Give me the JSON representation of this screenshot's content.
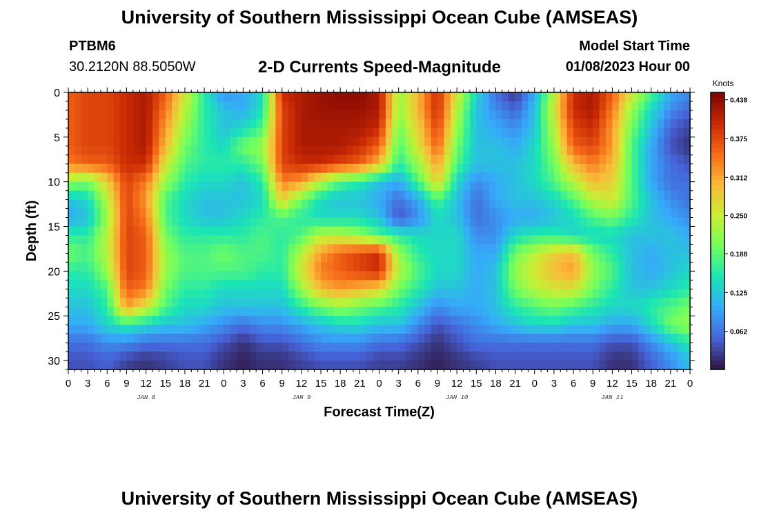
{
  "header": {
    "title": "University of Southern Mississippi Ocean Cube (AMSEAS)",
    "station": "PTBM6",
    "coords": "30.2120N  88.5050W",
    "subtitle": "2-D Currents Speed-Magnitude",
    "model_start_label": "Model Start Time",
    "model_start_value": "01/08/2023 Hour 00"
  },
  "footer": {
    "title": "University of Southern Mississippi Ocean Cube (AMSEAS)"
  },
  "colors": {
    "colormap": [
      "#30123b",
      "#4662d7",
      "#36aaf9",
      "#1ae4b6",
      "#72fe5e",
      "#c8ef34",
      "#faba39",
      "#f66b19",
      "#ca2a04",
      "#7a0403"
    ]
  },
  "chart_data": {
    "type": "heatmap",
    "title": "2-D Currents Speed-Magnitude",
    "xlabel": "Forecast Time(Z)",
    "ylabel": "Depth (ft)",
    "xlim": [
      0,
      96
    ],
    "ylim": [
      0,
      31
    ],
    "x_tick_values": [
      0,
      3,
      6,
      9,
      12,
      15,
      18,
      21,
      24,
      27,
      30,
      33,
      36,
      39,
      42,
      45,
      48,
      51,
      54,
      57,
      60,
      63,
      66,
      69,
      72,
      75,
      78,
      81,
      84,
      87,
      90,
      93,
      96
    ],
    "x_tick_labels": [
      "0",
      "3",
      "6",
      "9",
      "12",
      "15",
      "18",
      "21",
      "0",
      "3",
      "6",
      "9",
      "12",
      "15",
      "18",
      "21",
      "0",
      "3",
      "6",
      "9",
      "12",
      "15",
      "18",
      "21",
      "0",
      "3",
      "6",
      "9",
      "12",
      "15",
      "18",
      "21",
      "0"
    ],
    "y_tick_values": [
      0,
      5,
      10,
      15,
      20,
      25,
      30
    ],
    "y_tick_labels": [
      "0",
      "5",
      "10",
      "15",
      "20",
      "25",
      "30"
    ],
    "day_labels": [
      {
        "text": "JAN 8",
        "x": 12
      },
      {
        "text": "JAN 9",
        "x": 36
      },
      {
        "text": "JAN 10",
        "x": 60
      },
      {
        "text": "JAN 11",
        "x": 84
      }
    ],
    "colorbar": {
      "unit": "Knots",
      "min": 0.0,
      "max": 0.45,
      "tick_values": [
        0.062,
        0.125,
        0.188,
        0.25,
        0.312,
        0.375,
        0.438
      ],
      "tick_labels": [
        "0.062",
        "0.125",
        "0.188",
        "0.250",
        "0.312",
        "0.375",
        "0.438"
      ]
    },
    "depths_ft": [
      0,
      2,
      4,
      6,
      8,
      10,
      12,
      14,
      16,
      18,
      20,
      22,
      24,
      26,
      28,
      30,
      31
    ],
    "times_h": [
      0,
      3,
      6,
      9,
      12,
      15,
      18,
      21,
      24,
      27,
      30,
      33,
      36,
      39,
      42,
      45,
      48,
      51,
      54,
      57,
      60,
      63,
      66,
      69,
      72,
      75,
      78,
      81,
      84,
      87,
      90,
      93,
      96
    ],
    "speed_knots": [
      [
        0.36,
        0.38,
        0.38,
        0.4,
        0.42,
        0.36,
        0.26,
        0.16,
        0.08,
        0.1,
        0.14,
        0.4,
        0.42,
        0.43,
        0.44,
        0.44,
        0.42,
        0.22,
        0.3,
        0.4,
        0.26,
        0.14,
        0.06,
        0.02,
        0.1,
        0.24,
        0.4,
        0.42,
        0.36,
        0.26,
        0.18,
        0.1,
        0.08
      ],
      [
        0.36,
        0.38,
        0.38,
        0.4,
        0.42,
        0.34,
        0.24,
        0.16,
        0.12,
        0.1,
        0.15,
        0.38,
        0.42,
        0.43,
        0.43,
        0.43,
        0.42,
        0.22,
        0.3,
        0.4,
        0.24,
        0.12,
        0.08,
        0.05,
        0.12,
        0.26,
        0.4,
        0.42,
        0.34,
        0.22,
        0.14,
        0.08,
        0.05
      ],
      [
        0.36,
        0.38,
        0.38,
        0.4,
        0.42,
        0.32,
        0.22,
        0.16,
        0.12,
        0.14,
        0.18,
        0.38,
        0.42,
        0.42,
        0.42,
        0.42,
        0.4,
        0.2,
        0.28,
        0.38,
        0.22,
        0.12,
        0.1,
        0.08,
        0.12,
        0.24,
        0.38,
        0.4,
        0.32,
        0.2,
        0.12,
        0.05,
        0.03
      ],
      [
        0.36,
        0.38,
        0.38,
        0.4,
        0.42,
        0.3,
        0.2,
        0.16,
        0.14,
        0.2,
        0.22,
        0.38,
        0.42,
        0.42,
        0.42,
        0.4,
        0.36,
        0.18,
        0.26,
        0.36,
        0.2,
        0.12,
        0.12,
        0.1,
        0.14,
        0.22,
        0.36,
        0.38,
        0.32,
        0.18,
        0.1,
        0.04,
        0.02
      ],
      [
        0.34,
        0.36,
        0.36,
        0.4,
        0.4,
        0.26,
        0.18,
        0.16,
        0.16,
        0.16,
        0.2,
        0.38,
        0.4,
        0.4,
        0.38,
        0.36,
        0.3,
        0.16,
        0.22,
        0.32,
        0.18,
        0.12,
        0.12,
        0.12,
        0.14,
        0.2,
        0.3,
        0.34,
        0.3,
        0.18,
        0.1,
        0.06,
        0.04
      ],
      [
        0.22,
        0.2,
        0.28,
        0.38,
        0.34,
        0.22,
        0.16,
        0.14,
        0.14,
        0.12,
        0.16,
        0.34,
        0.32,
        0.24,
        0.18,
        0.16,
        0.12,
        0.1,
        0.18,
        0.28,
        0.14,
        0.08,
        0.1,
        0.12,
        0.14,
        0.18,
        0.24,
        0.3,
        0.28,
        0.18,
        0.1,
        0.06,
        0.06
      ],
      [
        0.12,
        0.14,
        0.24,
        0.38,
        0.32,
        0.18,
        0.14,
        0.12,
        0.12,
        0.12,
        0.14,
        0.28,
        0.2,
        0.14,
        0.12,
        0.12,
        0.1,
        0.06,
        0.1,
        0.18,
        0.12,
        0.06,
        0.1,
        0.12,
        0.12,
        0.14,
        0.18,
        0.24,
        0.26,
        0.18,
        0.12,
        0.08,
        0.06
      ],
      [
        0.1,
        0.12,
        0.22,
        0.38,
        0.34,
        0.18,
        0.14,
        0.12,
        0.12,
        0.14,
        0.16,
        0.18,
        0.16,
        0.14,
        0.14,
        0.14,
        0.12,
        0.04,
        0.08,
        0.14,
        0.12,
        0.06,
        0.08,
        0.1,
        0.1,
        0.12,
        0.14,
        0.18,
        0.2,
        0.16,
        0.12,
        0.1,
        0.08
      ],
      [
        0.16,
        0.16,
        0.24,
        0.38,
        0.36,
        0.2,
        0.16,
        0.16,
        0.16,
        0.16,
        0.18,
        0.16,
        0.18,
        0.24,
        0.24,
        0.22,
        0.18,
        0.16,
        0.14,
        0.14,
        0.14,
        0.08,
        0.08,
        0.14,
        0.16,
        0.16,
        0.14,
        0.14,
        0.14,
        0.12,
        0.12,
        0.12,
        0.1
      ],
      [
        0.2,
        0.18,
        0.24,
        0.38,
        0.36,
        0.22,
        0.18,
        0.18,
        0.2,
        0.18,
        0.18,
        0.16,
        0.24,
        0.32,
        0.36,
        0.38,
        0.4,
        0.22,
        0.16,
        0.14,
        0.14,
        0.1,
        0.1,
        0.2,
        0.24,
        0.28,
        0.3,
        0.2,
        0.16,
        0.12,
        0.1,
        0.12,
        0.12
      ],
      [
        0.16,
        0.16,
        0.22,
        0.38,
        0.36,
        0.22,
        0.18,
        0.18,
        0.18,
        0.18,
        0.16,
        0.16,
        0.26,
        0.34,
        0.36,
        0.38,
        0.4,
        0.24,
        0.18,
        0.14,
        0.14,
        0.1,
        0.12,
        0.22,
        0.26,
        0.3,
        0.32,
        0.22,
        0.18,
        0.12,
        0.1,
        0.12,
        0.14
      ],
      [
        0.14,
        0.14,
        0.18,
        0.36,
        0.34,
        0.2,
        0.16,
        0.16,
        0.14,
        0.14,
        0.14,
        0.14,
        0.22,
        0.3,
        0.32,
        0.3,
        0.28,
        0.2,
        0.16,
        0.12,
        0.12,
        0.1,
        0.12,
        0.2,
        0.24,
        0.26,
        0.26,
        0.2,
        0.16,
        0.12,
        0.12,
        0.14,
        0.16
      ],
      [
        0.12,
        0.12,
        0.16,
        0.32,
        0.26,
        0.18,
        0.14,
        0.14,
        0.12,
        0.12,
        0.12,
        0.12,
        0.16,
        0.2,
        0.22,
        0.2,
        0.18,
        0.16,
        0.12,
        0.08,
        0.1,
        0.1,
        0.12,
        0.16,
        0.18,
        0.2,
        0.18,
        0.16,
        0.14,
        0.14,
        0.16,
        0.18,
        0.2
      ],
      [
        0.1,
        0.1,
        0.14,
        0.16,
        0.14,
        0.12,
        0.12,
        0.1,
        0.08,
        0.06,
        0.08,
        0.08,
        0.1,
        0.12,
        0.14,
        0.14,
        0.12,
        0.12,
        0.08,
        0.04,
        0.06,
        0.08,
        0.1,
        0.12,
        0.14,
        0.14,
        0.12,
        0.12,
        0.1,
        0.1,
        0.14,
        0.2,
        0.22
      ],
      [
        0.06,
        0.06,
        0.08,
        0.08,
        0.06,
        0.06,
        0.06,
        0.06,
        0.04,
        0.02,
        0.04,
        0.04,
        0.06,
        0.08,
        0.08,
        0.08,
        0.06,
        0.06,
        0.04,
        0.02,
        0.04,
        0.06,
        0.06,
        0.06,
        0.06,
        0.06,
        0.06,
        0.06,
        0.04,
        0.04,
        0.08,
        0.12,
        0.16
      ],
      [
        0.04,
        0.04,
        0.05,
        0.03,
        0.02,
        0.03,
        0.04,
        0.04,
        0.02,
        0.01,
        0.02,
        0.02,
        0.03,
        0.04,
        0.04,
        0.04,
        0.03,
        0.03,
        0.02,
        0.01,
        0.02,
        0.03,
        0.04,
        0.04,
        0.04,
        0.04,
        0.04,
        0.04,
        0.02,
        0.02,
        0.05,
        0.08,
        0.12
      ],
      [
        0.04,
        0.04,
        0.05,
        0.03,
        0.02,
        0.03,
        0.04,
        0.04,
        0.02,
        0.01,
        0.02,
        0.02,
        0.03,
        0.04,
        0.04,
        0.04,
        0.03,
        0.03,
        0.02,
        0.01,
        0.02,
        0.03,
        0.04,
        0.04,
        0.04,
        0.04,
        0.04,
        0.04,
        0.02,
        0.02,
        0.05,
        0.08,
        0.12
      ]
    ]
  }
}
